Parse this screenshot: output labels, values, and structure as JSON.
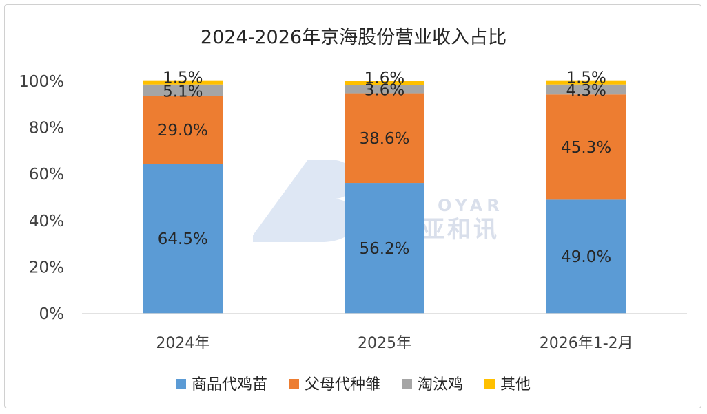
{
  "colors": {
    "商品代鸡苗": "#5b9bd5",
    "父母代种雏": "#ed7d31",
    "淘汰鸡": "#a5a5a5",
    "其他": "#ffc000",
    "axis": "#d9d9d9"
  },
  "watermark": {
    "brand_en": "OYAR",
    "brand_cn": "亚和讯"
  },
  "chart_data": {
    "type": "bar",
    "stacked": true,
    "percent_stacked": true,
    "title": "2024-2026年京海股份营业收入占比",
    "categories": [
      "2024年",
      "2025年",
      "2026年1-2月"
    ],
    "ylim": [
      0,
      100
    ],
    "yticks": [
      0,
      20,
      40,
      60,
      80,
      100
    ],
    "ytick_labels": [
      "0%",
      "20%",
      "40%",
      "60%",
      "80%",
      "100%"
    ],
    "grid": false,
    "legend_position": "bottom",
    "series": [
      {
        "name": "商品代鸡苗",
        "values": [
          64.5,
          56.2,
          49.0
        ],
        "labels": [
          "64.5%",
          "56.2%",
          "49.0%"
        ]
      },
      {
        "name": "父母代种雏",
        "values": [
          29.0,
          38.6,
          45.3
        ],
        "labels": [
          "29.0%",
          "38.6%",
          "45.3%"
        ]
      },
      {
        "name": "淘汰鸡",
        "values": [
          5.1,
          3.6,
          4.3
        ],
        "labels": [
          "5.1%",
          "3.6%",
          "4.3%"
        ]
      },
      {
        "name": "其他",
        "values": [
          1.5,
          1.6,
          1.5
        ],
        "labels": [
          "1.5%",
          "1.6%",
          "1.5%"
        ]
      }
    ]
  }
}
